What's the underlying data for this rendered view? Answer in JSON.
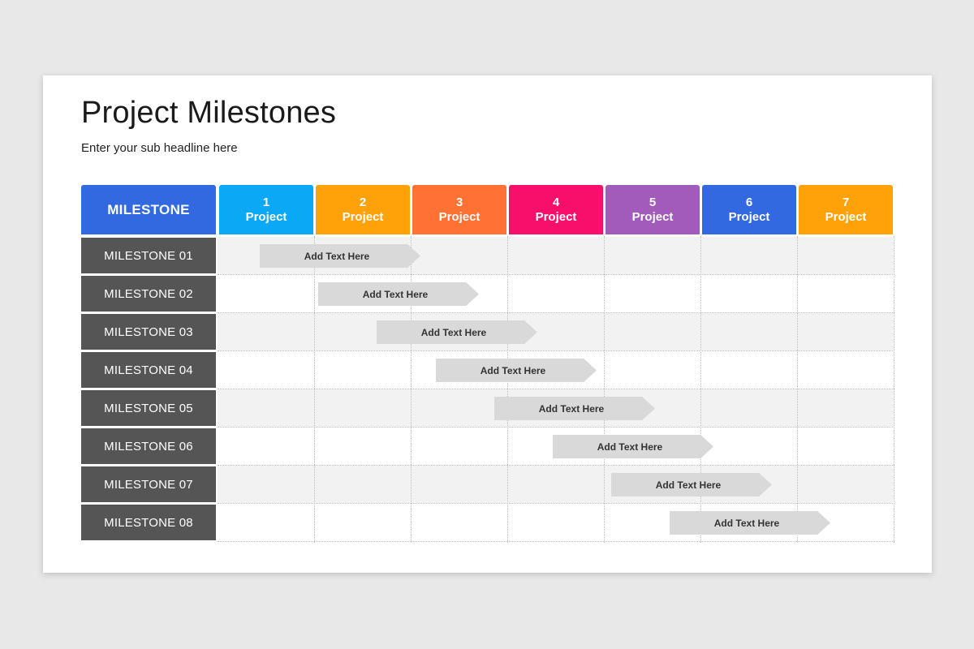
{
  "title": "Project Milestones",
  "subtitle": "Enter your sub headline here",
  "milestone_header": "MILESTONE",
  "projects": [
    {
      "number": "1",
      "label": "Project",
      "color": "#0aa8f5"
    },
    {
      "number": "2",
      "label": "Project",
      "color": "#ffa20a"
    },
    {
      "number": "3",
      "label": "Project",
      "color": "#ff7233"
    },
    {
      "number": "4",
      "label": "Project",
      "color": "#f80f6b"
    },
    {
      "number": "5",
      "label": "Project",
      "color": "#a25bbb"
    },
    {
      "number": "6",
      "label": "Project",
      "color": "#3369e0"
    },
    {
      "number": "7",
      "label": "Project",
      "color": "#ffa20a"
    }
  ],
  "milestone_header_color": "#3369e0",
  "milestones": [
    {
      "label": "MILESTONE 01",
      "task": "Add Text Here"
    },
    {
      "label": "MILESTONE 02",
      "task": "Add Text Here"
    },
    {
      "label": "MILESTONE 03",
      "task": "Add Text Here"
    },
    {
      "label": "MILESTONE 04",
      "task": "Add Text Here"
    },
    {
      "label": "MILESTONE 05",
      "task": "Add Text Here"
    },
    {
      "label": "MILESTONE 06",
      "task": "Add Text Here"
    },
    {
      "label": "MILESTONE 07",
      "task": "Add Text Here"
    },
    {
      "label": "MILESTONE 08",
      "task": "Add Text Here"
    }
  ]
}
